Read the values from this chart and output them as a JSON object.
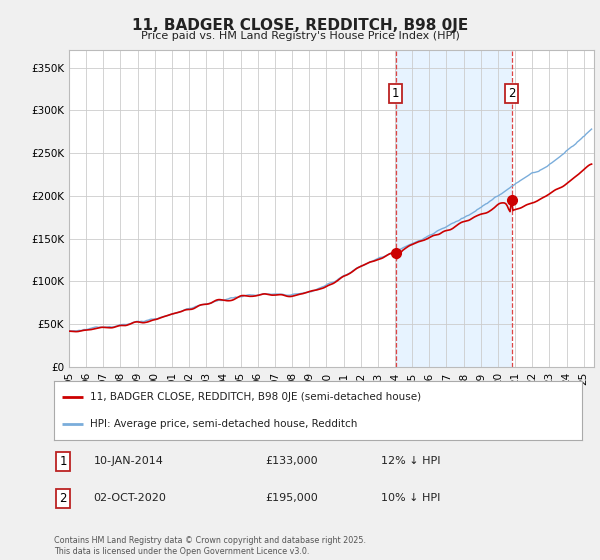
{
  "title": "11, BADGER CLOSE, REDDITCH, B98 0JE",
  "subtitle": "Price paid vs. HM Land Registry's House Price Index (HPI)",
  "red_label": "11, BADGER CLOSE, REDDITCH, B98 0JE (semi-detached house)",
  "blue_label": "HPI: Average price, semi-detached house, Redditch",
  "marker1_date": "10-JAN-2014",
  "marker1_price": 133000,
  "marker1_hpi_diff": "12% ↓ HPI",
  "marker2_date": "02-OCT-2020",
  "marker2_price": 195000,
  "marker2_hpi_diff": "10% ↓ HPI",
  "footer": "Contains HM Land Registry data © Crown copyright and database right 2025.\nThis data is licensed under the Open Government Licence v3.0.",
  "background_color": "#f0f0f0",
  "plot_bg_color": "#ffffff",
  "red_color": "#cc0000",
  "blue_color": "#7aaddb",
  "shade_color": "#ddeeff",
  "vline_color": "#dd4444",
  "ylim": [
    0,
    370000
  ],
  "yticks": [
    0,
    50000,
    100000,
    150000,
    200000,
    250000,
    300000,
    350000
  ],
  "xlim_start": 1995,
  "xlim_end": 2025.6
}
